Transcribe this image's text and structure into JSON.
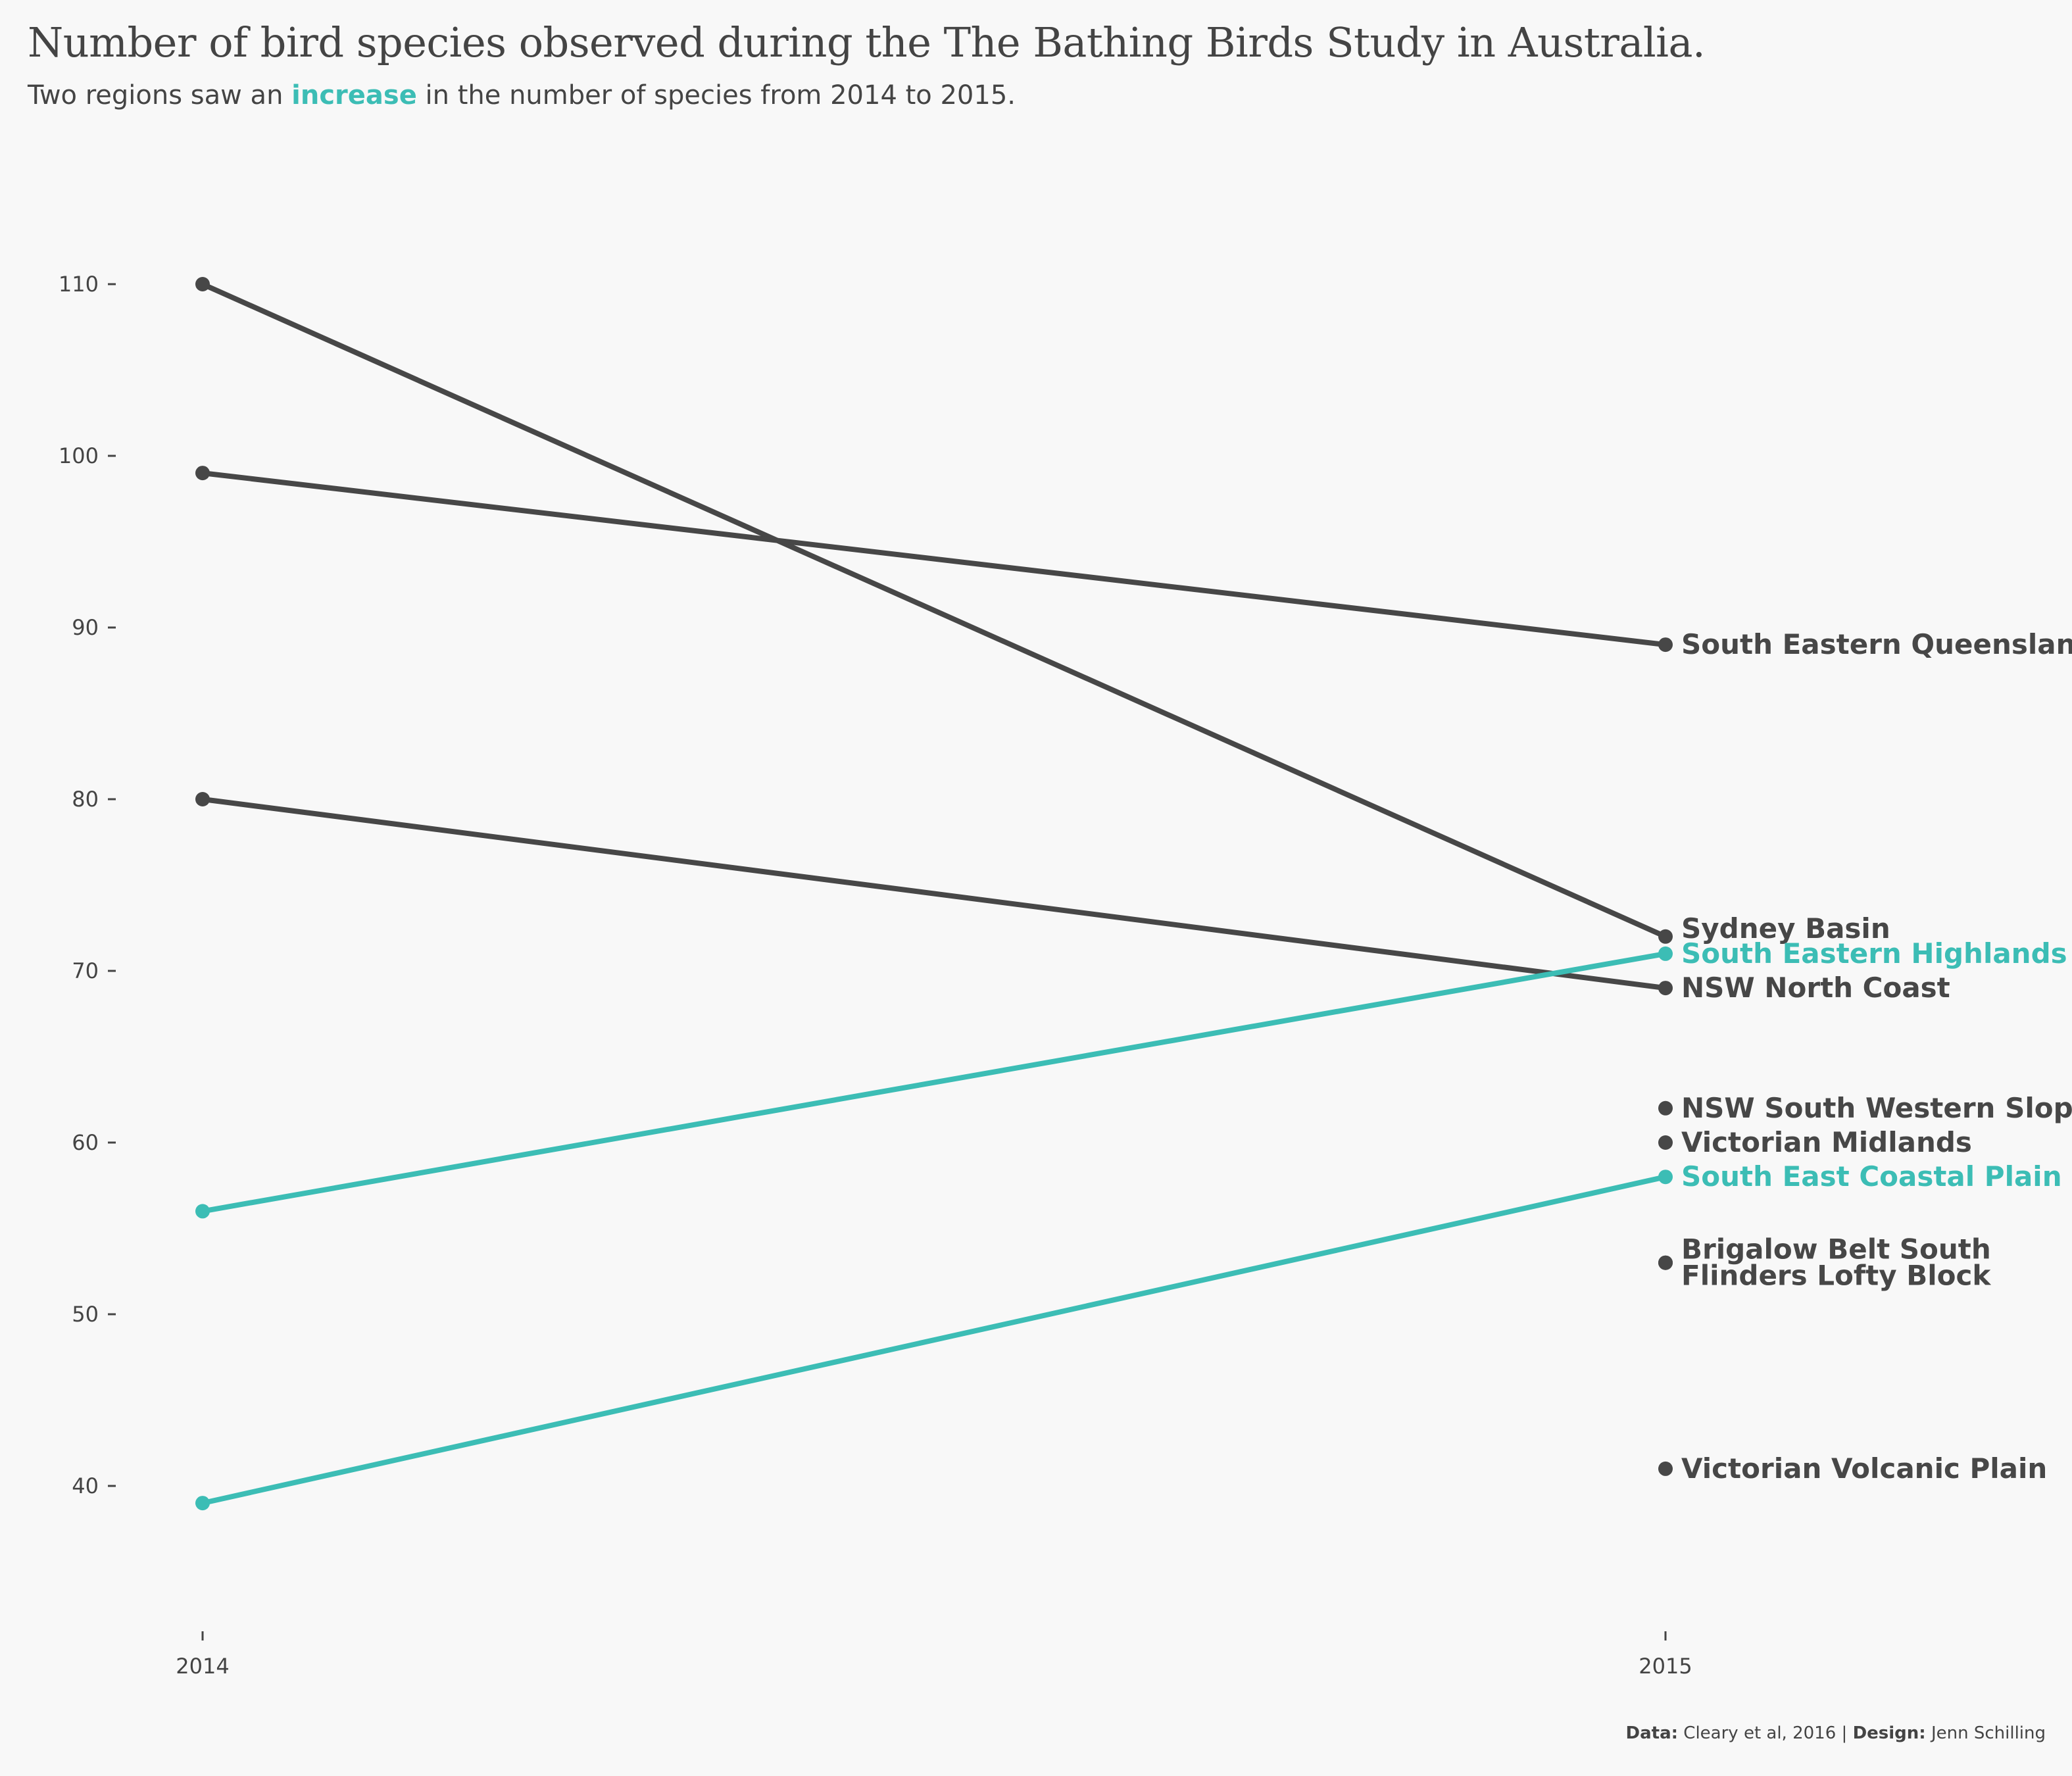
{
  "title": "Number of bird species observed during the The Bathing Birds Study in Australia.",
  "subtitle": {
    "before": "Two regions saw an ",
    "highlight": "increase",
    "after": " in the number of species from 2014 to 2015."
  },
  "caption": {
    "data_label": "Data:",
    "data_value": "Cleary et al, 2016",
    "separator": " | ",
    "design_label": "Design:",
    "design_value": "Jenn Schilling"
  },
  "colors": {
    "decrease": "#474747",
    "increase": "#3cbdb5",
    "text": "#444444",
    "background": "#f8f8f8"
  },
  "chart_data": {
    "type": "line",
    "title": "Number of bird species observed during the The Bathing Birds Study in Australia.",
    "x": [
      "2014",
      "2015"
    ],
    "y_ticks": [
      40,
      50,
      60,
      70,
      80,
      90,
      100,
      110
    ],
    "ylim": [
      32,
      116
    ],
    "grid": false,
    "series": [
      {
        "name": "Sydney Basin",
        "values": [
          110,
          72
        ],
        "trend": "decrease"
      },
      {
        "name": "South Eastern Queensland",
        "values": [
          99,
          89
        ],
        "trend": "decrease"
      },
      {
        "name": "NSW North Coast",
        "values": [
          80,
          69
        ],
        "trend": "decrease"
      },
      {
        "name": "South Eastern Highlands",
        "values": [
          56,
          71
        ],
        "trend": "increase"
      },
      {
        "name": "South East Coastal Plain",
        "values": [
          39,
          58
        ],
        "trend": "increase"
      },
      {
        "name": "NSW South Western Slopes",
        "values": [
          null,
          62
        ],
        "trend": "none"
      },
      {
        "name": "Victorian Midlands",
        "values": [
          null,
          60
        ],
        "trend": "none"
      },
      {
        "name": "Brigalow Belt South",
        "values": [
          null,
          53
        ],
        "trend": "none"
      },
      {
        "name": "Flinders Lofty Block",
        "values": [
          null,
          53
        ],
        "trend": "none"
      },
      {
        "name": "Victorian Volcanic Plain",
        "values": [
          null,
          41
        ],
        "trend": "none"
      }
    ]
  }
}
